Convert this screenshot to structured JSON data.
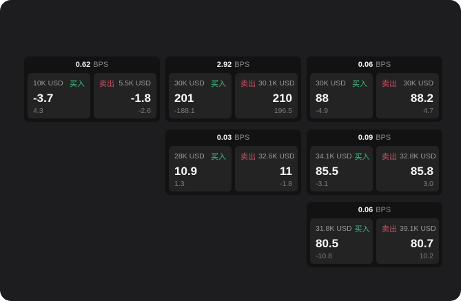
{
  "labels": {
    "bps_suffix": "BPS",
    "buy": "买入",
    "sell": "卖出"
  },
  "colors": {
    "background": "#1d1d1f",
    "card": "#121213",
    "panel": "#232324",
    "buy_green": "#3fbf80",
    "sell_red": "#c94f5f",
    "primary_text": "#fafafa",
    "muted_text": "#9b9b9e"
  },
  "cards": [
    {
      "bps": "0.62",
      "buy": {
        "amount": "10K USD",
        "value": "-3.7",
        "delta": "4.3"
      },
      "sell": {
        "amount": "5.5K USD",
        "value": "-1.8",
        "delta": "-2.6"
      }
    },
    {
      "bps": "2.92",
      "buy": {
        "amount": "30K USD",
        "value": "201",
        "delta": "-188.1"
      },
      "sell": {
        "amount": "30.1K USD",
        "value": "210",
        "delta": "196.5"
      }
    },
    {
      "bps": "0.06",
      "buy": {
        "amount": "30K USD",
        "value": "88",
        "delta": "-4.9"
      },
      "sell": {
        "amount": "30K USD",
        "value": "88.2",
        "delta": "4.7"
      }
    },
    {
      "bps": "0.03",
      "buy": {
        "amount": "28K USD",
        "value": "10.9",
        "delta": "1.3"
      },
      "sell": {
        "amount": "32.6K USD",
        "value": "11",
        "delta": "-1.8"
      }
    },
    {
      "bps": "0.09",
      "buy": {
        "amount": "34.1K USD",
        "value": "85.5",
        "delta": "-3.1"
      },
      "sell": {
        "amount": "32.8K USD",
        "value": "85.8",
        "delta": "3.0"
      }
    },
    {
      "bps": "0.06",
      "buy": {
        "amount": "31.8K USD",
        "value": "80.5",
        "delta": "-10.8"
      },
      "sell": {
        "amount": "39.1K USD",
        "value": "80.7",
        "delta": "10.2"
      }
    }
  ]
}
